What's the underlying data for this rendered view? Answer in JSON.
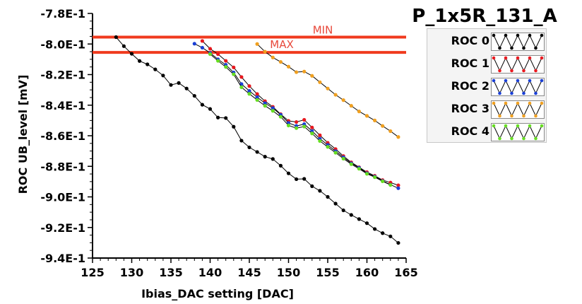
{
  "chart_data": {
    "type": "line",
    "title": "P_1x5R_131_A",
    "xlabel": "Ibias_DAC setting [DAC]",
    "ylabel": "ROC UB_level [mV]",
    "xlim": [
      125,
      165
    ],
    "ylim": [
      -0.94,
      -0.78
    ],
    "x_ticks": [
      125,
      130,
      135,
      140,
      145,
      150,
      155,
      160,
      165
    ],
    "y_ticks": [
      -0.94,
      -0.92,
      -0.9,
      -0.88,
      -0.86,
      -0.84,
      -0.82,
      -0.8,
      -0.78
    ],
    "x_tick_labels": [
      "125",
      "130",
      "135",
      "140",
      "145",
      "150",
      "155",
      "160",
      "165"
    ],
    "y_tick_labels": [
      "-9.4E-1",
      "-9.2E-1",
      "-9.0E-1",
      "-8.8E-1",
      "-8.6E-1",
      "-8.4E-1",
      "-8.2E-1",
      "-8.0E-1",
      "-7.8E-1"
    ],
    "grid": false,
    "legend_position": "top-right",
    "reference_lines": [
      {
        "label": "MIN",
        "y": -0.7955,
        "color": "#f03a1e"
      },
      {
        "label": "MAX",
        "y": -0.8055,
        "color": "#f03a1e"
      }
    ],
    "series": [
      {
        "name": "ROC 0",
        "color": "#000000",
        "x": [
          128,
          129,
          130,
          131,
          132,
          133,
          134,
          135,
          136,
          137,
          138,
          139,
          140,
          141,
          142,
          143,
          144,
          145,
          146,
          147,
          148,
          149,
          150,
          151,
          152,
          153,
          154,
          155,
          156,
          157,
          158,
          159,
          160,
          161,
          162,
          163,
          164
        ],
        "y": [
          -0.7955,
          -0.8014,
          -0.8064,
          -0.8111,
          -0.8133,
          -0.8166,
          -0.8206,
          -0.8268,
          -0.8255,
          -0.8291,
          -0.8339,
          -0.8397,
          -0.8425,
          -0.8481,
          -0.8484,
          -0.8541,
          -0.8632,
          -0.8676,
          -0.8706,
          -0.8737,
          -0.8752,
          -0.8796,
          -0.8846,
          -0.8884,
          -0.8882,
          -0.893,
          -0.896,
          -0.9,
          -0.9044,
          -0.9088,
          -0.9118,
          -0.9145,
          -0.9172,
          -0.921,
          -0.9237,
          -0.9258,
          -0.9301
        ]
      },
      {
        "name": "ROC 1",
        "color": "#e8181e",
        "x": [
          139,
          140,
          141,
          142,
          143,
          144,
          145,
          146,
          147,
          148,
          149,
          150,
          151,
          152,
          153,
          154,
          155,
          156,
          157,
          158,
          159,
          160,
          161,
          162,
          163,
          164
        ],
        "y": [
          -0.798,
          -0.8031,
          -0.8066,
          -0.811,
          -0.8153,
          -0.8216,
          -0.8275,
          -0.8327,
          -0.8374,
          -0.8411,
          -0.8459,
          -0.8503,
          -0.851,
          -0.8496,
          -0.8546,
          -0.8597,
          -0.8646,
          -0.8687,
          -0.8733,
          -0.8774,
          -0.8806,
          -0.8838,
          -0.8862,
          -0.889,
          -0.8906,
          -0.8924
        ]
      },
      {
        "name": "ROC 2",
        "color": "#1a3fd6",
        "x": [
          138,
          139,
          140,
          141,
          142,
          143,
          144,
          145,
          146,
          147,
          148,
          149,
          150,
          151,
          152,
          153,
          154,
          155,
          156,
          157,
          158,
          159,
          160,
          161,
          162,
          163,
          164
        ],
        "y": [
          -0.7998,
          -0.8024,
          -0.8058,
          -0.81,
          -0.8136,
          -0.8186,
          -0.8262,
          -0.8307,
          -0.8348,
          -0.8387,
          -0.8419,
          -0.8463,
          -0.8516,
          -0.8536,
          -0.8524,
          -0.8569,
          -0.862,
          -0.866,
          -0.8701,
          -0.8741,
          -0.878,
          -0.8809,
          -0.8845,
          -0.8867,
          -0.8895,
          -0.892,
          -0.8943
        ]
      },
      {
        "name": "ROC 3",
        "color": "#f0a020",
        "x": [
          146,
          147,
          148,
          149,
          150,
          151,
          152,
          153,
          154,
          155,
          156,
          157,
          158,
          159,
          160,
          161,
          162,
          163,
          164
        ],
        "y": [
          -0.8,
          -0.805,
          -0.8088,
          -0.8117,
          -0.8148,
          -0.8184,
          -0.818,
          -0.8208,
          -0.825,
          -0.8291,
          -0.8332,
          -0.8367,
          -0.8404,
          -0.8441,
          -0.847,
          -0.85,
          -0.8536,
          -0.857,
          -0.8608
        ]
      },
      {
        "name": "ROC 4",
        "color": "#66dd22",
        "x": [
          140,
          141,
          142,
          143,
          144,
          145,
          146,
          147,
          148,
          149,
          150,
          151,
          152,
          153,
          154,
          155,
          156,
          157,
          158,
          159,
          160,
          161,
          162,
          163
        ],
        "y": [
          -0.8066,
          -0.811,
          -0.815,
          -0.8198,
          -0.8283,
          -0.8326,
          -0.8366,
          -0.8404,
          -0.8437,
          -0.8476,
          -0.8533,
          -0.855,
          -0.854,
          -0.8585,
          -0.8634,
          -0.8673,
          -0.8711,
          -0.875,
          -0.8786,
          -0.8816,
          -0.8849,
          -0.8871,
          -0.8898,
          -0.8922
        ]
      }
    ]
  }
}
